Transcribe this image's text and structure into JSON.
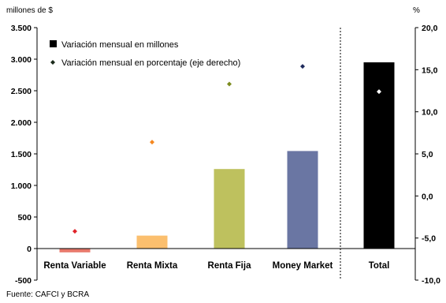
{
  "units": {
    "left": "millones de $",
    "right": "%"
  },
  "source": "Fuente: CAFCI y BCRA",
  "chart_data": {
    "type": "bar",
    "categories": [
      "Renta Variable",
      "Renta Mixta",
      "Renta Fija",
      "Money Market",
      "Total"
    ],
    "series": [
      {
        "name": "Variación mensual en millones",
        "axis": "left",
        "values": [
          -60,
          205,
          1260,
          1545,
          2950
        ],
        "colors": [
          "#e8796c",
          "#fbbf6e",
          "#bec15e",
          "#6a76a3",
          "#000000"
        ]
      },
      {
        "name": "Variación mensual en porcentaje (eje derecho)",
        "axis": "right",
        "values": [
          -4.2,
          6.4,
          13.3,
          15.4,
          12.4
        ],
        "colors": [
          "#e0242a",
          "#f5871f",
          "#7c8b1e",
          "#1f2b5c",
          "#ffffff"
        ]
      }
    ],
    "y_left": {
      "ylim": [
        -500,
        3500
      ],
      "ticks": [
        "-500",
        "0",
        "500",
        "1.000",
        "1.500",
        "2.000",
        "2.500",
        "3.000",
        "3.500"
      ],
      "tick_values": [
        -500,
        0,
        500,
        1000,
        1500,
        2000,
        2500,
        3000,
        3500
      ]
    },
    "y_right": {
      "ylim": [
        -10,
        20
      ],
      "ticks": [
        "-10,0",
        "-5,0",
        "0,0",
        "5,0",
        "10,0",
        "15,0",
        "20,0"
      ],
      "tick_values": [
        -10,
        -5,
        0,
        5,
        10,
        15,
        20
      ]
    },
    "legend_position": "top-left",
    "grid": false
  }
}
